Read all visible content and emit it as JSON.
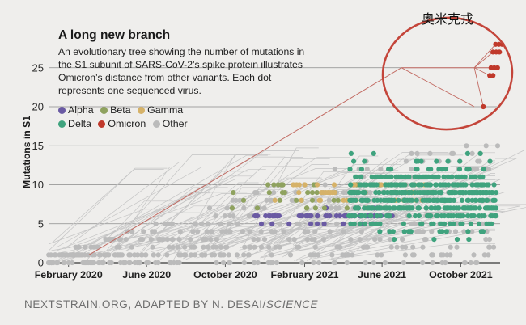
{
  "header": {
    "title": "A long new branch",
    "subtitle": "An evolutionary tree showing the number of mutations in the S1 subunit of SARS-CoV-2’s spike protein illustrates Omicron’s distance from other variants. Each dot represents one sequenced virus."
  },
  "annotation": {
    "text": "奥米克戎",
    "meaning": "Omicron",
    "shape": "red ellipse circling the Omicron cluster"
  },
  "source": {
    "text": "NEXTSTRAIN.ORG, ADAPTED BY N. DESAI/",
    "italic": "SCIENCE"
  },
  "chart_data": {
    "type": "scatter",
    "title": "A long new branch",
    "xlabel": "",
    "ylabel": "Mutations in S1",
    "x_axis": "date",
    "x_ticks": [
      "February 2020",
      "June 2020",
      "October 2020",
      "February 2021",
      "June 2021",
      "October 2021"
    ],
    "xlim": [
      "2020-01-01",
      "2021-12-01"
    ],
    "y_ticks": [
      0,
      5,
      10,
      15,
      20,
      25
    ],
    "ylim": [
      0,
      29
    ],
    "grid": "horizontal",
    "legend_position": "top-left",
    "colors": {
      "Alpha": "#6a5aa3",
      "Beta": "#8fa25f",
      "Gamma": "#d6b268",
      "Delta": "#3fa37e",
      "Omicron": "#c0392b",
      "Other": "#bbbbbb"
    },
    "series": [
      {
        "name": "Alpha",
        "x_range": [
          "2020-11",
          "2021-06"
        ],
        "y_range": [
          5,
          8
        ],
        "description": "cluster mostly at 6 mutations"
      },
      {
        "name": "Beta",
        "x_range": [
          "2020-10",
          "2021-07"
        ],
        "y_range": [
          5,
          11
        ],
        "description": "cluster around 7-9 mutations"
      },
      {
        "name": "Gamma",
        "x_range": [
          "2020-12",
          "2021-08"
        ],
        "y_range": [
          7,
          11
        ],
        "description": "scattered around 9-10 mutations"
      },
      {
        "name": "Delta",
        "x_range": [
          "2021-04",
          "2021-11"
        ],
        "y_range": [
          3,
          14
        ],
        "description": "dense cluster at 7-10 mutations"
      },
      {
        "name": "Omicron",
        "points": [
          {
            "x": "2021-11-05",
            "y": 20
          },
          {
            "x": "2021-11-15",
            "y": 24
          },
          {
            "x": "2021-11-17",
            "y": 25
          },
          {
            "x": "2021-11-20",
            "y": 27
          },
          {
            "x": "2021-11-24",
            "y": 28
          }
        ],
        "description": "long new branch reaching 20-28 mutations"
      },
      {
        "name": "Other",
        "x_range": [
          "2020-01",
          "2021-11"
        ],
        "y_range": [
          0,
          15
        ],
        "description": "background lineages rising from 0 to about 15 mutations"
      }
    ],
    "legend": [
      "Alpha",
      "Beta",
      "Gamma",
      "Delta",
      "Omicron",
      "Other"
    ]
  }
}
